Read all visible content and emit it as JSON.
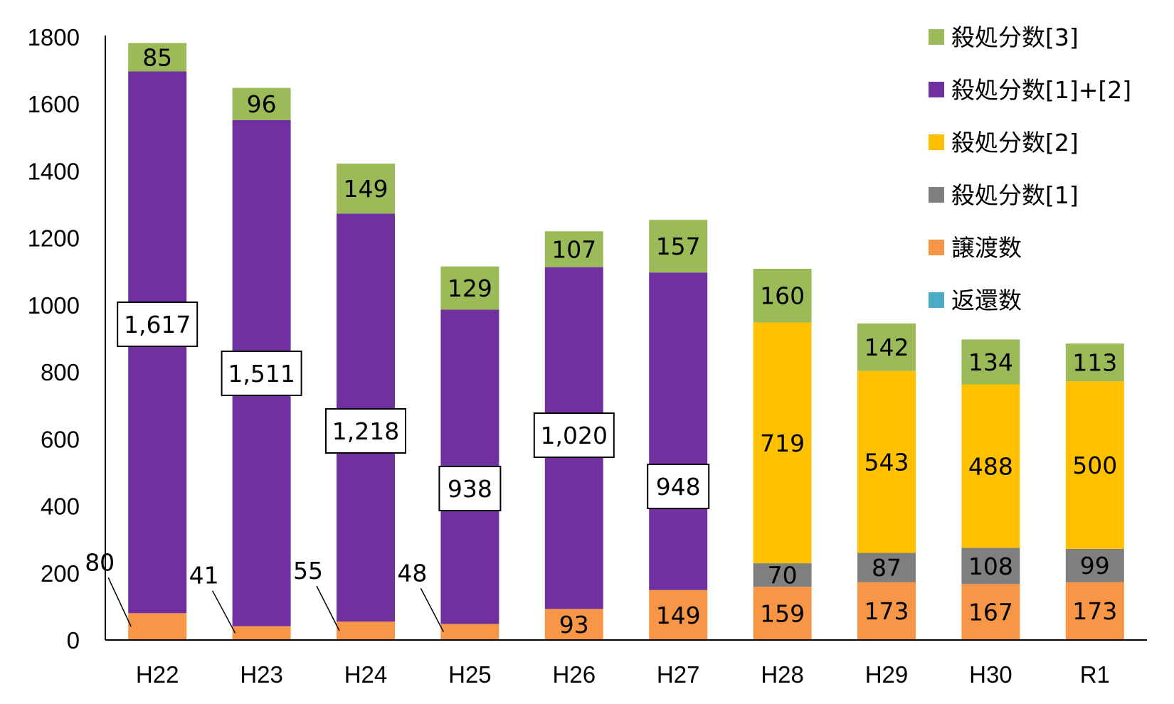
{
  "chart_data": {
    "type": "bar",
    "stacked": true,
    "categories": [
      "H22",
      "H23",
      "H24",
      "H25",
      "H26",
      "H27",
      "H28",
      "H29",
      "H30",
      "R1"
    ],
    "ylim": [
      0,
      1800
    ],
    "yticks": [
      0,
      200,
      400,
      600,
      800,
      1000,
      1200,
      1400,
      1600,
      1800
    ],
    "xlabel": "",
    "ylabel": "",
    "title": "",
    "grid": false,
    "series": [
      {
        "name": "返還数",
        "color": "#4bacc6",
        "values": [
          0,
          0,
          0,
          0,
          0,
          0,
          0,
          0,
          0,
          0
        ],
        "labels": [
          "",
          "",
          "",
          "",
          "",
          "",
          "",
          "",
          "",
          ""
        ]
      },
      {
        "name": "譲渡数",
        "color": "#f79646",
        "values": [
          80,
          41,
          55,
          48,
          93,
          149,
          159,
          173,
          167,
          173
        ],
        "labels": [
          "80",
          "41",
          "55",
          "48",
          "93",
          "149",
          "159",
          "173",
          "167",
          "173"
        ]
      },
      {
        "name": "殺処分数[1]",
        "color": "#7f7f7f",
        "values": [
          0,
          0,
          0,
          0,
          0,
          0,
          70,
          87,
          108,
          99
        ],
        "labels": [
          "",
          "",
          "",
          "",
          "",
          "",
          "70",
          "87",
          "108",
          "99"
        ]
      },
      {
        "name": "殺処分数[2]",
        "color": "#ffc000",
        "values": [
          0,
          0,
          0,
          0,
          0,
          0,
          719,
          543,
          488,
          500
        ],
        "labels": [
          "",
          "",
          "",
          "",
          "",
          "",
          "719",
          "543",
          "488",
          "500"
        ]
      },
      {
        "name": "殺処分数[1]+[2]",
        "color": "#7030a0",
        "values": [
          1617,
          1511,
          1218,
          938,
          1020,
          948,
          0,
          0,
          0,
          0
        ],
        "labels": [
          "1,617",
          "1,511",
          "1,218",
          "938",
          "1,020",
          "948",
          "",
          "",
          "",
          ""
        ]
      },
      {
        "name": "殺処分数[3]",
        "color": "#9bbb59",
        "values": [
          85,
          96,
          149,
          129,
          107,
          157,
          160,
          142,
          134,
          113
        ],
        "labels": [
          "85",
          "96",
          "149",
          "129",
          "107",
          "157",
          "160",
          "142",
          "134",
          "113"
        ]
      }
    ],
    "legend_order": [
      "殺処分数[3]",
      "殺処分数[1]+[2]",
      "殺処分数[2]",
      "殺処分数[1]",
      "譲渡数",
      "返還数"
    ],
    "legend_position": "top-right"
  }
}
